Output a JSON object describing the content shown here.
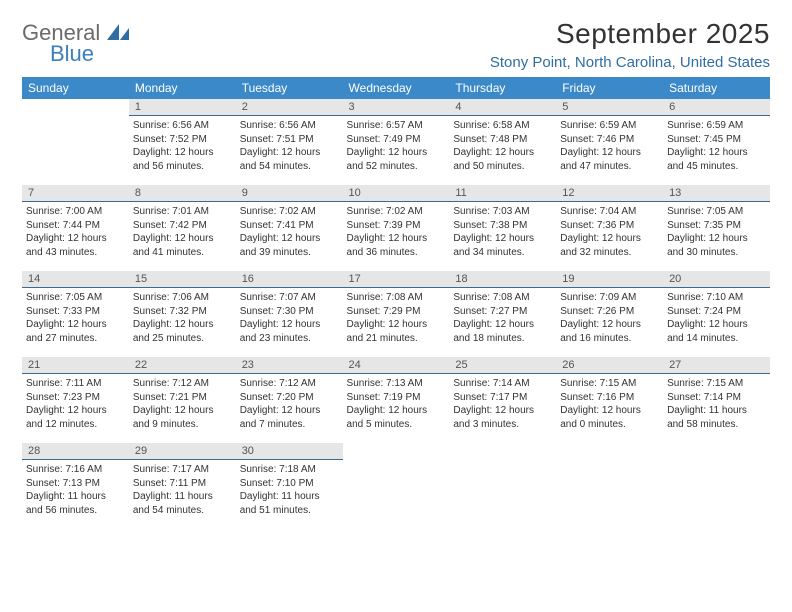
{
  "logo": {
    "general": "General",
    "blue": "Blue"
  },
  "title": "September 2025",
  "location": "Stony Point, North Carolina, United States",
  "colors": {
    "header_bg": "#3b89c9",
    "header_text": "#ffffff",
    "daynum_bg": "#e6e6e6",
    "daynum_border": "#3b6a8f",
    "location_color": "#2f6da3",
    "logo_gray": "#6b6b6b",
    "logo_blue": "#3b7fbf"
  },
  "weekdays": [
    "Sunday",
    "Monday",
    "Tuesday",
    "Wednesday",
    "Thursday",
    "Friday",
    "Saturday"
  ],
  "weeks": [
    [
      {
        "empty": true
      },
      {
        "day": "1",
        "sunrise": "Sunrise: 6:56 AM",
        "sunset": "Sunset: 7:52 PM",
        "daylight": "Daylight: 12 hours and 56 minutes."
      },
      {
        "day": "2",
        "sunrise": "Sunrise: 6:56 AM",
        "sunset": "Sunset: 7:51 PM",
        "daylight": "Daylight: 12 hours and 54 minutes."
      },
      {
        "day": "3",
        "sunrise": "Sunrise: 6:57 AM",
        "sunset": "Sunset: 7:49 PM",
        "daylight": "Daylight: 12 hours and 52 minutes."
      },
      {
        "day": "4",
        "sunrise": "Sunrise: 6:58 AM",
        "sunset": "Sunset: 7:48 PM",
        "daylight": "Daylight: 12 hours and 50 minutes."
      },
      {
        "day": "5",
        "sunrise": "Sunrise: 6:59 AM",
        "sunset": "Sunset: 7:46 PM",
        "daylight": "Daylight: 12 hours and 47 minutes."
      },
      {
        "day": "6",
        "sunrise": "Sunrise: 6:59 AM",
        "sunset": "Sunset: 7:45 PM",
        "daylight": "Daylight: 12 hours and 45 minutes."
      }
    ],
    [
      {
        "day": "7",
        "sunrise": "Sunrise: 7:00 AM",
        "sunset": "Sunset: 7:44 PM",
        "daylight": "Daylight: 12 hours and 43 minutes."
      },
      {
        "day": "8",
        "sunrise": "Sunrise: 7:01 AM",
        "sunset": "Sunset: 7:42 PM",
        "daylight": "Daylight: 12 hours and 41 minutes."
      },
      {
        "day": "9",
        "sunrise": "Sunrise: 7:02 AM",
        "sunset": "Sunset: 7:41 PM",
        "daylight": "Daylight: 12 hours and 39 minutes."
      },
      {
        "day": "10",
        "sunrise": "Sunrise: 7:02 AM",
        "sunset": "Sunset: 7:39 PM",
        "daylight": "Daylight: 12 hours and 36 minutes."
      },
      {
        "day": "11",
        "sunrise": "Sunrise: 7:03 AM",
        "sunset": "Sunset: 7:38 PM",
        "daylight": "Daylight: 12 hours and 34 minutes."
      },
      {
        "day": "12",
        "sunrise": "Sunrise: 7:04 AM",
        "sunset": "Sunset: 7:36 PM",
        "daylight": "Daylight: 12 hours and 32 minutes."
      },
      {
        "day": "13",
        "sunrise": "Sunrise: 7:05 AM",
        "sunset": "Sunset: 7:35 PM",
        "daylight": "Daylight: 12 hours and 30 minutes."
      }
    ],
    [
      {
        "day": "14",
        "sunrise": "Sunrise: 7:05 AM",
        "sunset": "Sunset: 7:33 PM",
        "daylight": "Daylight: 12 hours and 27 minutes."
      },
      {
        "day": "15",
        "sunrise": "Sunrise: 7:06 AM",
        "sunset": "Sunset: 7:32 PM",
        "daylight": "Daylight: 12 hours and 25 minutes."
      },
      {
        "day": "16",
        "sunrise": "Sunrise: 7:07 AM",
        "sunset": "Sunset: 7:30 PM",
        "daylight": "Daylight: 12 hours and 23 minutes."
      },
      {
        "day": "17",
        "sunrise": "Sunrise: 7:08 AM",
        "sunset": "Sunset: 7:29 PM",
        "daylight": "Daylight: 12 hours and 21 minutes."
      },
      {
        "day": "18",
        "sunrise": "Sunrise: 7:08 AM",
        "sunset": "Sunset: 7:27 PM",
        "daylight": "Daylight: 12 hours and 18 minutes."
      },
      {
        "day": "19",
        "sunrise": "Sunrise: 7:09 AM",
        "sunset": "Sunset: 7:26 PM",
        "daylight": "Daylight: 12 hours and 16 minutes."
      },
      {
        "day": "20",
        "sunrise": "Sunrise: 7:10 AM",
        "sunset": "Sunset: 7:24 PM",
        "daylight": "Daylight: 12 hours and 14 minutes."
      }
    ],
    [
      {
        "day": "21",
        "sunrise": "Sunrise: 7:11 AM",
        "sunset": "Sunset: 7:23 PM",
        "daylight": "Daylight: 12 hours and 12 minutes."
      },
      {
        "day": "22",
        "sunrise": "Sunrise: 7:12 AM",
        "sunset": "Sunset: 7:21 PM",
        "daylight": "Daylight: 12 hours and 9 minutes."
      },
      {
        "day": "23",
        "sunrise": "Sunrise: 7:12 AM",
        "sunset": "Sunset: 7:20 PM",
        "daylight": "Daylight: 12 hours and 7 minutes."
      },
      {
        "day": "24",
        "sunrise": "Sunrise: 7:13 AM",
        "sunset": "Sunset: 7:19 PM",
        "daylight": "Daylight: 12 hours and 5 minutes."
      },
      {
        "day": "25",
        "sunrise": "Sunrise: 7:14 AM",
        "sunset": "Sunset: 7:17 PM",
        "daylight": "Daylight: 12 hours and 3 minutes."
      },
      {
        "day": "26",
        "sunrise": "Sunrise: 7:15 AM",
        "sunset": "Sunset: 7:16 PM",
        "daylight": "Daylight: 12 hours and 0 minutes."
      },
      {
        "day": "27",
        "sunrise": "Sunrise: 7:15 AM",
        "sunset": "Sunset: 7:14 PM",
        "daylight": "Daylight: 11 hours and 58 minutes."
      }
    ],
    [
      {
        "day": "28",
        "sunrise": "Sunrise: 7:16 AM",
        "sunset": "Sunset: 7:13 PM",
        "daylight": "Daylight: 11 hours and 56 minutes."
      },
      {
        "day": "29",
        "sunrise": "Sunrise: 7:17 AM",
        "sunset": "Sunset: 7:11 PM",
        "daylight": "Daylight: 11 hours and 54 minutes."
      },
      {
        "day": "30",
        "sunrise": "Sunrise: 7:18 AM",
        "sunset": "Sunset: 7:10 PM",
        "daylight": "Daylight: 11 hours and 51 minutes."
      },
      {
        "empty": true
      },
      {
        "empty": true
      },
      {
        "empty": true
      },
      {
        "empty": true
      }
    ]
  ]
}
